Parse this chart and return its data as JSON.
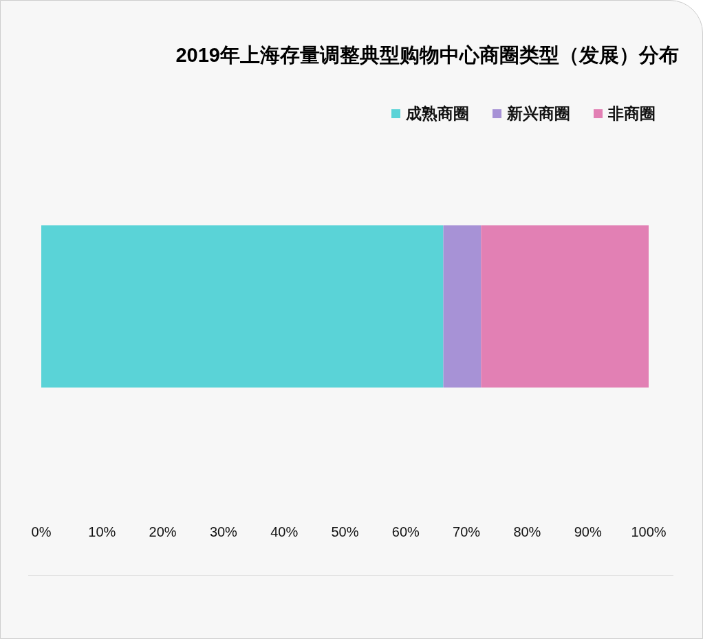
{
  "chart_data": {
    "type": "bar",
    "title": "2019年上海存量调整典型购物中心商圈类型（发展）分布",
    "orientation": "horizontal",
    "stacked": true,
    "categories": [
      null
    ],
    "series": [
      {
        "name": "成熟商圈",
        "color": "#5ad3d7",
        "values": [
          66.2
        ]
      },
      {
        "name": "新兴商圈",
        "color": "#a792d6",
        "values": [
          6.2
        ]
      },
      {
        "name": "非商圈",
        "color": "#e280b4",
        "values": [
          27.6
        ]
      }
    ],
    "xlim": [
      0,
      100
    ],
    "xticks": [
      {
        "value": 0,
        "label": "0%"
      },
      {
        "value": 10,
        "label": "10%"
      },
      {
        "value": 20,
        "label": "20%"
      },
      {
        "value": 30,
        "label": "30%"
      },
      {
        "value": 40,
        "label": "40%"
      },
      {
        "value": 50,
        "label": "50%"
      },
      {
        "value": 60,
        "label": "60%"
      },
      {
        "value": 70,
        "label": "70%"
      },
      {
        "value": 80,
        "label": "80%"
      },
      {
        "value": 90,
        "label": "90%"
      },
      {
        "value": 100,
        "label": "100%"
      }
    ],
    "legend": "top right"
  }
}
